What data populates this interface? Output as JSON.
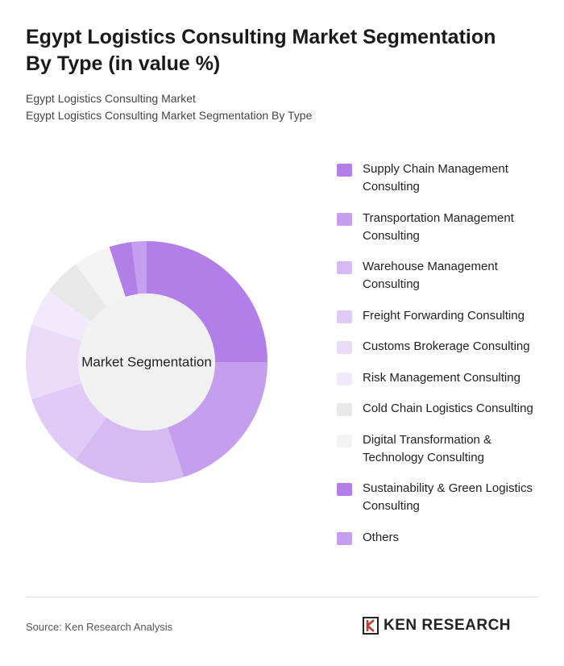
{
  "chart_data": {
    "type": "donut",
    "title": "Egypt Logistics Consulting Market Segmentation By Type (in value %)",
    "subtitle": [
      "Egypt Logistics Consulting Market",
      "Egypt Logistics Consulting Market Segmentation By Type"
    ],
    "center_label": "Market Segmentation",
    "categories": [
      "Supply Chain Management Consulting",
      "Transportation Management Consulting",
      "Warehouse Management Consulting",
      "Freight Forwarding Consulting",
      "Customs Brokerage Consulting",
      "Risk Management Consulting",
      "Cold Chain Logistics Consulting",
      "Digital Transformation & Technology Consulting",
      "Sustainability & Green Logistics Consulting",
      "Others"
    ],
    "values": [
      25,
      20,
      15,
      10,
      10,
      5,
      5,
      5,
      3,
      2
    ],
    "colors": [
      "#b27fe9",
      "#c69eee",
      "#d6bbf3",
      "#e0caf6",
      "#eadcf9",
      "#f2eafc",
      "#e8e8e8",
      "#f3f3f3",
      "#b27fe9",
      "#c69eee"
    ]
  },
  "source": "Source: Ken Research Analysis",
  "logo": "KEN RESEARCH"
}
